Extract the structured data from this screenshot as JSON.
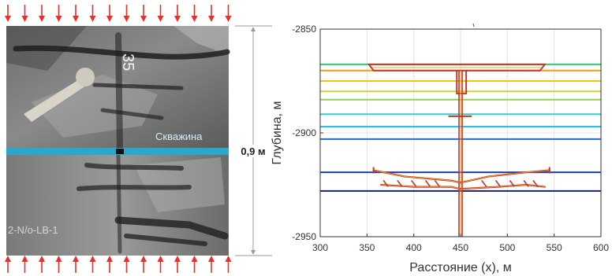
{
  "photo_panel": {
    "well_label": "Скважина",
    "sample_mark": "35",
    "specimen_text": "2-N/o-LB-1",
    "dimension_label": "0,9 м",
    "well_color": "#2aa7c9",
    "arrow_color": "#e8302a"
  },
  "chart_data": {
    "type": "line",
    "title": "",
    "xlabel": "Расстояние (x), м",
    "ylabel": "Глубина, м",
    "xlim": [
      300,
      600
    ],
    "ylim": [
      -2950,
      -2850
    ],
    "xticks": [
      300,
      350,
      400,
      450,
      500,
      550,
      600
    ],
    "yticks": [
      -2850,
      -2900,
      -2950
    ],
    "grid": true,
    "background_lines": [
      {
        "y": -2867,
        "color": "#2ecc71"
      },
      {
        "y": -2870,
        "color": "#f39c12"
      },
      {
        "y": -2875,
        "color": "#f1c40f"
      },
      {
        "y": -2880,
        "color": "#c8d82a"
      },
      {
        "y": -2884,
        "color": "#8fd14f"
      },
      {
        "y": -2891,
        "color": "#3cc8c8"
      },
      {
        "y": -2897,
        "color": "#22b5e8"
      },
      {
        "y": -2903,
        "color": "#1f6fd1"
      },
      {
        "y": -2919,
        "color": "#1c3fa8"
      },
      {
        "y": -2928,
        "color": "#12206e"
      }
    ],
    "fracture_color": "#c0392b",
    "fracture_inner_color": "#f5a623",
    "fractures": {
      "top_cap": {
        "x_left": 352,
        "x_right": 540,
        "y_top": -2867,
        "y_bottom": -2870
      },
      "stem": {
        "x": 450,
        "y_top": -2870,
        "y_bottom": -2950
      },
      "stem_upper_box": {
        "x_left": 446,
        "x_right": 456,
        "y_top": -2870,
        "y_bottom": -2881
      },
      "cross_mark": {
        "x_left": 437,
        "x_right": 462,
        "y": -2892
      },
      "lower_branches": {
        "left_main": [
          [
            357,
            -2918
          ],
          [
            390,
            -2921
          ],
          [
            440,
            -2923
          ],
          [
            450,
            -2924
          ]
        ],
        "right_main": [
          [
            450,
            -2924
          ],
          [
            480,
            -2921
          ],
          [
            520,
            -2919
          ],
          [
            545,
            -2918
          ]
        ],
        "left_lower": [
          [
            365,
            -2925
          ],
          [
            400,
            -2926
          ],
          [
            440,
            -2926
          ],
          [
            450,
            -2927
          ]
        ],
        "right_lower": [
          [
            450,
            -2927
          ],
          [
            490,
            -2926
          ],
          [
            520,
            -2925
          ],
          [
            540,
            -2926
          ]
        ]
      }
    }
  }
}
